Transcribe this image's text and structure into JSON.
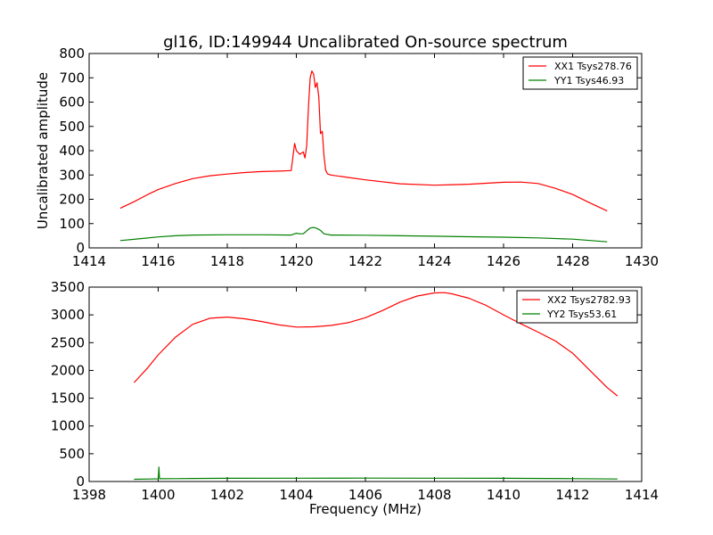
{
  "chart_data": [
    {
      "type": "line",
      "title": "gl16, ID:149944 Uncalibrated On-source spectrum",
      "xlabel": "",
      "ylabel": "Uncalibrated amplitude",
      "xlim": [
        1414,
        1430
      ],
      "ylim": [
        0,
        800
      ],
      "xticks": [
        1414,
        1416,
        1418,
        1420,
        1422,
        1424,
        1426,
        1428,
        1430
      ],
      "yticks": [
        0,
        100,
        200,
        300,
        400,
        500,
        600,
        700,
        800
      ],
      "legend_position": "top-right",
      "series": [
        {
          "name": "XX1 Tsys278.76",
          "color": "#ff0000",
          "x": [
            1414.9,
            1415.3,
            1415.7,
            1416.0,
            1416.5,
            1417.0,
            1417.5,
            1418.0,
            1418.5,
            1419.0,
            1419.5,
            1419.85,
            1419.95,
            1420.0,
            1420.1,
            1420.2,
            1420.25,
            1420.3,
            1420.35,
            1420.4,
            1420.45,
            1420.5,
            1420.55,
            1420.6,
            1420.65,
            1420.7,
            1420.75,
            1420.8,
            1420.85,
            1420.9,
            1421.0,
            1421.5,
            1422.0,
            1423.0,
            1424.0,
            1425.0,
            1426.0,
            1426.5,
            1427.0,
            1427.5,
            1428.0,
            1428.5,
            1429.0
          ],
          "y": [
            163,
            190,
            220,
            240,
            265,
            285,
            297,
            304,
            310,
            314,
            316,
            318,
            430,
            400,
            385,
            395,
            370,
            420,
            580,
            700,
            728,
            715,
            660,
            680,
            620,
            470,
            480,
            380,
            320,
            305,
            300,
            290,
            280,
            264,
            258,
            262,
            270,
            271,
            265,
            245,
            220,
            185,
            152
          ]
        },
        {
          "name": "YY1 Tsys46.93",
          "color": "#008000",
          "x": [
            1414.9,
            1415.5,
            1416.0,
            1416.5,
            1417.0,
            1418.0,
            1419.0,
            1419.85,
            1420.0,
            1420.1,
            1420.2,
            1420.3,
            1420.4,
            1420.5,
            1420.6,
            1420.7,
            1420.8,
            1421.0,
            1422.0,
            1423.0,
            1424.0,
            1425.0,
            1426.0,
            1427.0,
            1428.0,
            1429.0
          ],
          "y": [
            30,
            38,
            45,
            50,
            53,
            54,
            54,
            53,
            60,
            58,
            58,
            70,
            82,
            84,
            80,
            72,
            58,
            53,
            52,
            50,
            48,
            46,
            44,
            41,
            36,
            25
          ]
        }
      ]
    },
    {
      "type": "line",
      "title": "",
      "xlabel": "Frequency (MHz)",
      "ylabel": "",
      "xlim": [
        1398,
        1414
      ],
      "ylim": [
        0,
        3500
      ],
      "xticks": [
        1398,
        1400,
        1402,
        1404,
        1406,
        1408,
        1410,
        1412,
        1414
      ],
      "yticks": [
        0,
        500,
        1000,
        1500,
        2000,
        2500,
        3000,
        3500
      ],
      "legend_position": "top-right",
      "series": [
        {
          "name": "XX2 Tsys2782.93",
          "color": "#ff0000",
          "x": [
            1399.3,
            1399.7,
            1400.0,
            1400.5,
            1401.0,
            1401.5,
            1402.0,
            1402.5,
            1403.0,
            1403.5,
            1404.0,
            1404.5,
            1405.0,
            1405.5,
            1406.0,
            1406.5,
            1407.0,
            1407.5,
            1408.0,
            1408.3,
            1408.5,
            1409.0,
            1409.5,
            1410.0,
            1410.5,
            1411.0,
            1411.5,
            1412.0,
            1412.5,
            1413.0,
            1413.3
          ],
          "y": [
            1780,
            2050,
            2280,
            2600,
            2830,
            2940,
            2960,
            2930,
            2880,
            2820,
            2780,
            2785,
            2810,
            2860,
            2950,
            3080,
            3230,
            3340,
            3395,
            3400,
            3380,
            3300,
            3170,
            3000,
            2840,
            2690,
            2530,
            2310,
            2000,
            1690,
            1540
          ]
        },
        {
          "name": "YY2 Tsys53.61",
          "color": "#008000",
          "x": [
            1399.3,
            1399.8,
            1400.0,
            1400.02,
            1400.04,
            1400.06,
            1400.5,
            1401.0,
            1402.0,
            1404.0,
            1406.0,
            1408.0,
            1410.0,
            1412.0,
            1413.3
          ],
          "y": [
            40,
            45,
            48,
            260,
            48,
            50,
            52,
            55,
            58,
            60,
            61,
            60,
            58,
            52,
            45
          ]
        }
      ]
    }
  ]
}
